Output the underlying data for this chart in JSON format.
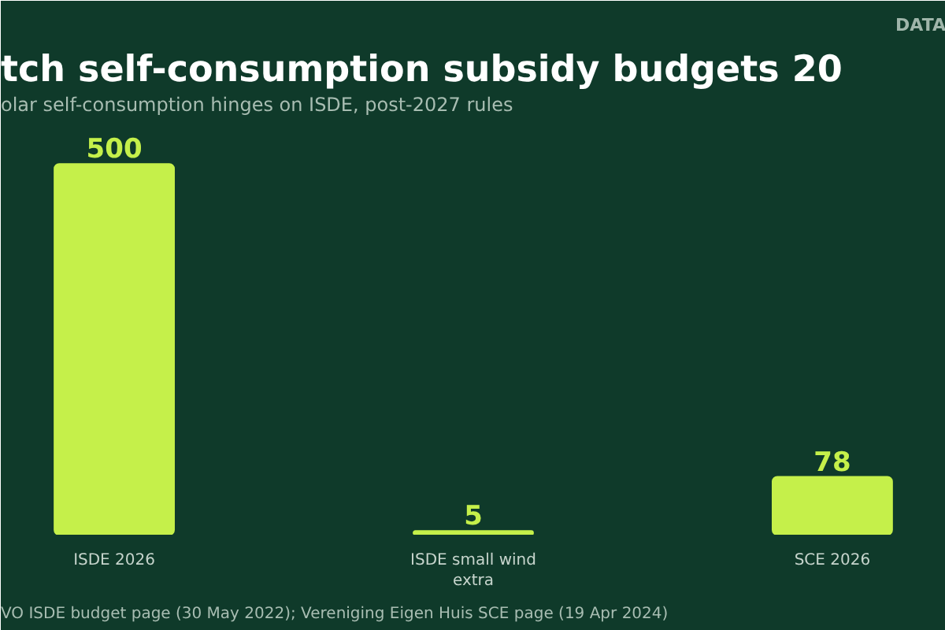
{
  "chart_data": {
    "type": "bar",
    "title": "tch self-consumption subsidy budgets 20",
    "subtitle": "olar self-consumption hinges on ISDE, post-2027 rules",
    "categories": [
      "ISDE 2026",
      "ISDE small wind extra",
      "SCE 2026"
    ],
    "values": [
      500,
      5,
      78
    ],
    "color": "#c5f04a",
    "data_labels": true,
    "grid": false,
    "legend": false,
    "annotations": [
      "DATA",
      "VO ISDE budget page (30 May 2022); Vereniging Eigen Huis SCE page (19 Apr 2024)"
    ]
  }
}
